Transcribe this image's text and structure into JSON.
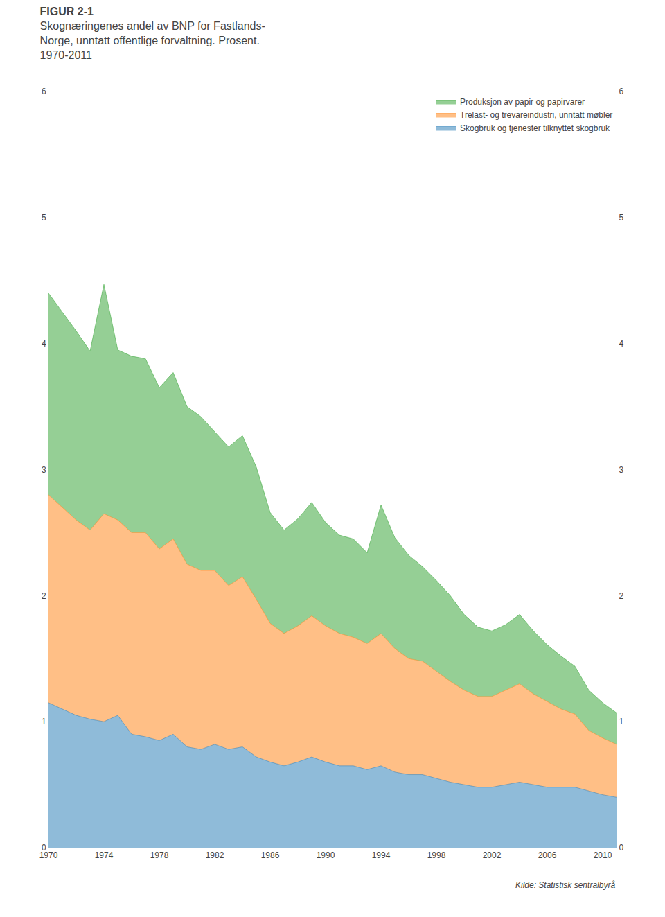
{
  "chart_data": {
    "type": "area",
    "stacked": true,
    "title": "FIGUR 2-1",
    "subtitle": [
      "Skognæringenes andel av BNP for Fastlands-",
      "Norge, unntatt offentlige forvaltning. Prosent.",
      "1970-2011"
    ],
    "annotations": [
      "Kilde: Statistisk sentralbyrå"
    ],
    "x": [
      1970,
      1971,
      1972,
      1973,
      1974,
      1975,
      1976,
      1977,
      1978,
      1979,
      1980,
      1981,
      1982,
      1983,
      1984,
      1985,
      1986,
      1987,
      1988,
      1989,
      1990,
      1991,
      1992,
      1993,
      1994,
      1995,
      1996,
      1997,
      1998,
      1999,
      2000,
      2001,
      2002,
      2003,
      2004,
      2005,
      2006,
      2007,
      2008,
      2009,
      2010,
      2011
    ],
    "series": [
      {
        "name": "Skogbruk og tjenester tilknyttet skogbruk",
        "values": [
          1.15,
          1.1,
          1.05,
          1.02,
          1.0,
          1.05,
          0.9,
          0.88,
          0.85,
          0.9,
          0.8,
          0.78,
          0.82,
          0.78,
          0.8,
          0.72,
          0.68,
          0.65,
          0.68,
          0.72,
          0.68,
          0.65,
          0.65,
          0.62,
          0.65,
          0.6,
          0.58,
          0.58,
          0.55,
          0.52,
          0.5,
          0.48,
          0.48,
          0.5,
          0.52,
          0.5,
          0.48,
          0.48,
          0.48,
          0.45,
          0.42,
          0.4
        ]
      },
      {
        "name": "Trelast- og trevareindustri, unntatt møbler",
        "values": [
          1.65,
          1.6,
          1.55,
          1.5,
          1.65,
          1.55,
          1.6,
          1.62,
          1.52,
          1.55,
          1.45,
          1.42,
          1.38,
          1.3,
          1.35,
          1.25,
          1.1,
          1.05,
          1.08,
          1.12,
          1.08,
          1.05,
          1.02,
          1.0,
          1.05,
          0.98,
          0.92,
          0.9,
          0.85,
          0.8,
          0.75,
          0.72,
          0.72,
          0.75,
          0.78,
          0.72,
          0.68,
          0.62,
          0.58,
          0.48,
          0.45,
          0.42
        ]
      },
      {
        "name": "Produksjon av papir og papirvarer",
        "values": [
          1.6,
          1.55,
          1.5,
          1.42,
          1.82,
          1.35,
          1.4,
          1.38,
          1.28,
          1.32,
          1.25,
          1.22,
          1.1,
          1.1,
          1.12,
          1.05,
          0.88,
          0.82,
          0.85,
          0.9,
          0.82,
          0.78,
          0.78,
          0.72,
          1.02,
          0.88,
          0.82,
          0.75,
          0.72,
          0.68,
          0.6,
          0.55,
          0.52,
          0.52,
          0.55,
          0.5,
          0.45,
          0.42,
          0.38,
          0.32,
          0.28,
          0.25
        ]
      }
    ],
    "xlim": [
      1970,
      2011
    ],
    "xticks": [
      1970,
      1974,
      1978,
      1982,
      1986,
      1990,
      1994,
      1998,
      2002,
      2006,
      2010
    ],
    "ylim": [
      0,
      6
    ],
    "yticks": [
      0,
      1,
      2,
      3,
      4,
      5,
      6
    ],
    "y2lim": [
      0,
      6
    ],
    "y2ticks": [
      0,
      1,
      2,
      3,
      4,
      5,
      6
    ],
    "grid": false,
    "legend": "upper right"
  }
}
